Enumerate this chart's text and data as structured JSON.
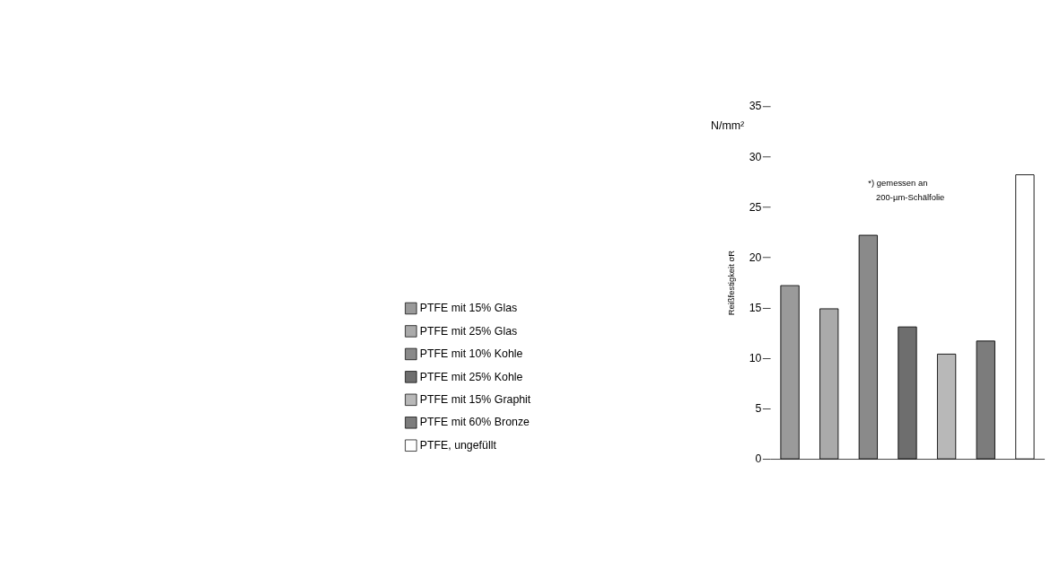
{
  "chart_data": {
    "type": "bar",
    "ylabel": "Reißfestigkeit σR",
    "categories": [
      null,
      null,
      null,
      null,
      null,
      null,
      null
    ],
    "series": [
      {
        "name": "PTFE mit 15% Glas",
        "color": "#9a9a9a",
        "values": [
          17.2,
          null,
          null,
          null,
          null,
          null,
          null
        ]
      },
      {
        "name": "PTFE mit 25% Glas",
        "color": "#aaaaaa",
        "values": [
          null,
          14.9,
          null,
          null,
          null,
          null,
          null
        ]
      },
      {
        "name": "PTFE mit 10% Kohle",
        "color": "#8a8a8a",
        "values": [
          null,
          null,
          22.2,
          null,
          null,
          null,
          null
        ]
      },
      {
        "name": "PTFE mit 25% Kohle",
        "color": "#6e6e6e",
        "values": [
          null,
          null,
          null,
          13.1,
          null,
          null,
          null
        ]
      },
      {
        "name": "PTFE mit 15% Graphit",
        "color": "#b8b8b8",
        "values": [
          null,
          null,
          null,
          null,
          10.4,
          null,
          null
        ]
      },
      {
        "name": "PTFE mit 60% Bronze",
        "color": "#7c7c7c",
        "values": [
          null,
          null,
          null,
          null,
          null,
          11.7,
          null
        ]
      },
      {
        "name": "PTFE, ungefüllt",
        "color": "#ffffff",
        "values": [
          null,
          null,
          null,
          null,
          null,
          null,
          28.2
        ]
      }
    ],
    "ylim": [
      0,
      35
    ],
    "yticks": [
      0,
      5,
      10,
      15,
      20,
      25,
      30,
      35
    ],
    "annotations": [
      "N/mm²",
      "*) gemessen an",
      "200-µm-Schälfolie"
    ],
    "grid": false,
    "legend": "left",
    "tick_labels": "y"
  }
}
